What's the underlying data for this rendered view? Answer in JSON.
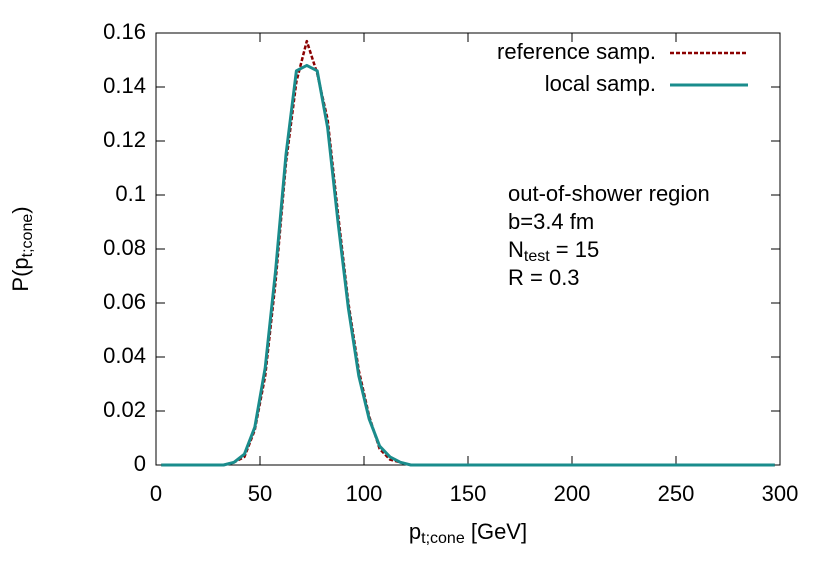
{
  "chart_data": {
    "type": "line",
    "xlabel": {
      "main": "p",
      "sub": "t;cone",
      "rest": " [GeV]"
    },
    "ylabel": {
      "main": "P(p",
      "sub": "t;cone",
      "rest": ")"
    },
    "annotation": [
      "out-of-shower region",
      "b=3.4 fm",
      {
        "main": "N",
        "sub": "test",
        "rest": " = 15"
      },
      "R = 0.3"
    ],
    "x": [
      2.5,
      7.5,
      12.5,
      17.5,
      22.5,
      27.5,
      32.5,
      37.5,
      42.5,
      47.5,
      52.5,
      57.5,
      62.5,
      67.5,
      72.5,
      77.5,
      82.5,
      87.5,
      92.5,
      97.5,
      102.5,
      107.5,
      112.5,
      117.5,
      122.5,
      127.5,
      132.5,
      137.5,
      142.5,
      147.5,
      152.5,
      157.5,
      162.5,
      167.5,
      172.5,
      177.5,
      182.5,
      187.5,
      192.5,
      197.5,
      202.5,
      207.5,
      212.5,
      217.5,
      222.5,
      227.5,
      232.5,
      237.5,
      242.5,
      247.5,
      252.5,
      257.5,
      262.5,
      267.5,
      272.5,
      277.5,
      282.5,
      287.5,
      292.5,
      297.5
    ],
    "series": [
      {
        "name": "reference samp.",
        "color": "#8b0000",
        "dash": true,
        "values": [
          0,
          0,
          0,
          0,
          0,
          0,
          0,
          0.001,
          0.003,
          0.013,
          0.033,
          0.068,
          0.112,
          0.142,
          0.157,
          0.145,
          0.128,
          0.093,
          0.06,
          0.035,
          0.018,
          0.006,
          0.002,
          0.001,
          0,
          0,
          0,
          0,
          0,
          0,
          0,
          0,
          0,
          0,
          0,
          0,
          0,
          0,
          0,
          0,
          0,
          0,
          0,
          0,
          0,
          0,
          0,
          0,
          0,
          0,
          0,
          0,
          0,
          0,
          0,
          0,
          0,
          0,
          0,
          0
        ]
      },
      {
        "name": "local samp.",
        "color": "#1a8c8c",
        "dash": false,
        "values": [
          0,
          0,
          0,
          0,
          0,
          0,
          0,
          0.001,
          0.004,
          0.014,
          0.036,
          0.072,
          0.115,
          0.146,
          0.148,
          0.146,
          0.125,
          0.09,
          0.058,
          0.033,
          0.017,
          0.007,
          0.003,
          0.001,
          0,
          0,
          0,
          0,
          0,
          0,
          0,
          0,
          0,
          0,
          0,
          0,
          0,
          0,
          0,
          0,
          0,
          0,
          0,
          0,
          0,
          0,
          0,
          0,
          0,
          0,
          0,
          0,
          0,
          0,
          0,
          0,
          0,
          0,
          0,
          0
        ]
      }
    ],
    "xlim": [
      0,
      300
    ],
    "ylim": [
      0,
      0.16
    ],
    "xticks": [
      0,
      50,
      100,
      150,
      200,
      250,
      300
    ],
    "yticks": [
      0,
      0.02,
      0.04,
      0.06,
      0.08,
      0.1,
      0.12,
      0.14,
      0.16
    ],
    "legend": "top-right",
    "grid": false
  }
}
